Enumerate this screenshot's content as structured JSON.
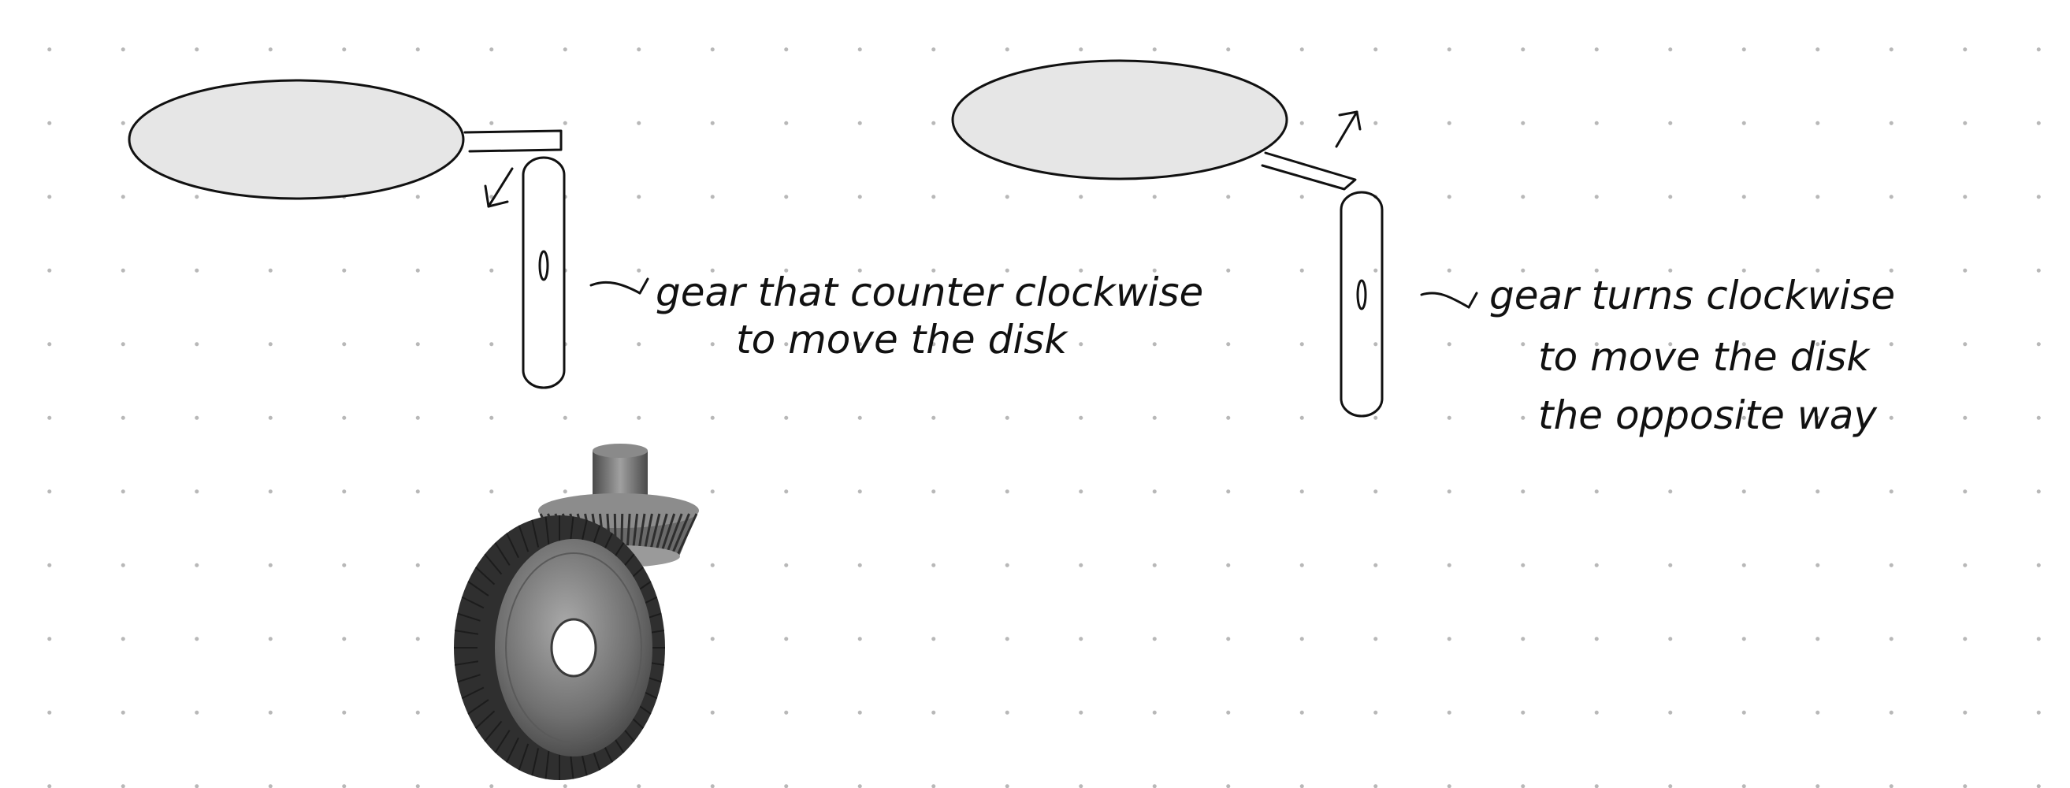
{
  "canvas": {
    "background": "#ffffff",
    "dot_color": "#b8b8b8"
  },
  "diagram_left": {
    "disk_fill": "#e6e6e6",
    "stroke": "#111111",
    "annotation_line_1": "gear that counter clockwise",
    "annotation_line_2": "to move the disk"
  },
  "diagram_right": {
    "disk_fill": "#e6e6e6",
    "stroke": "#111111",
    "annotation_line_1": "gear turns clockwise",
    "annotation_line_2": "to move the disk",
    "annotation_line_3": "the opposite way"
  },
  "gear_photo": {
    "description_icon": "bevel-gear-pair-icon",
    "metal_light": "#b8b8b8",
    "metal_dark": "#3c3c3c"
  }
}
